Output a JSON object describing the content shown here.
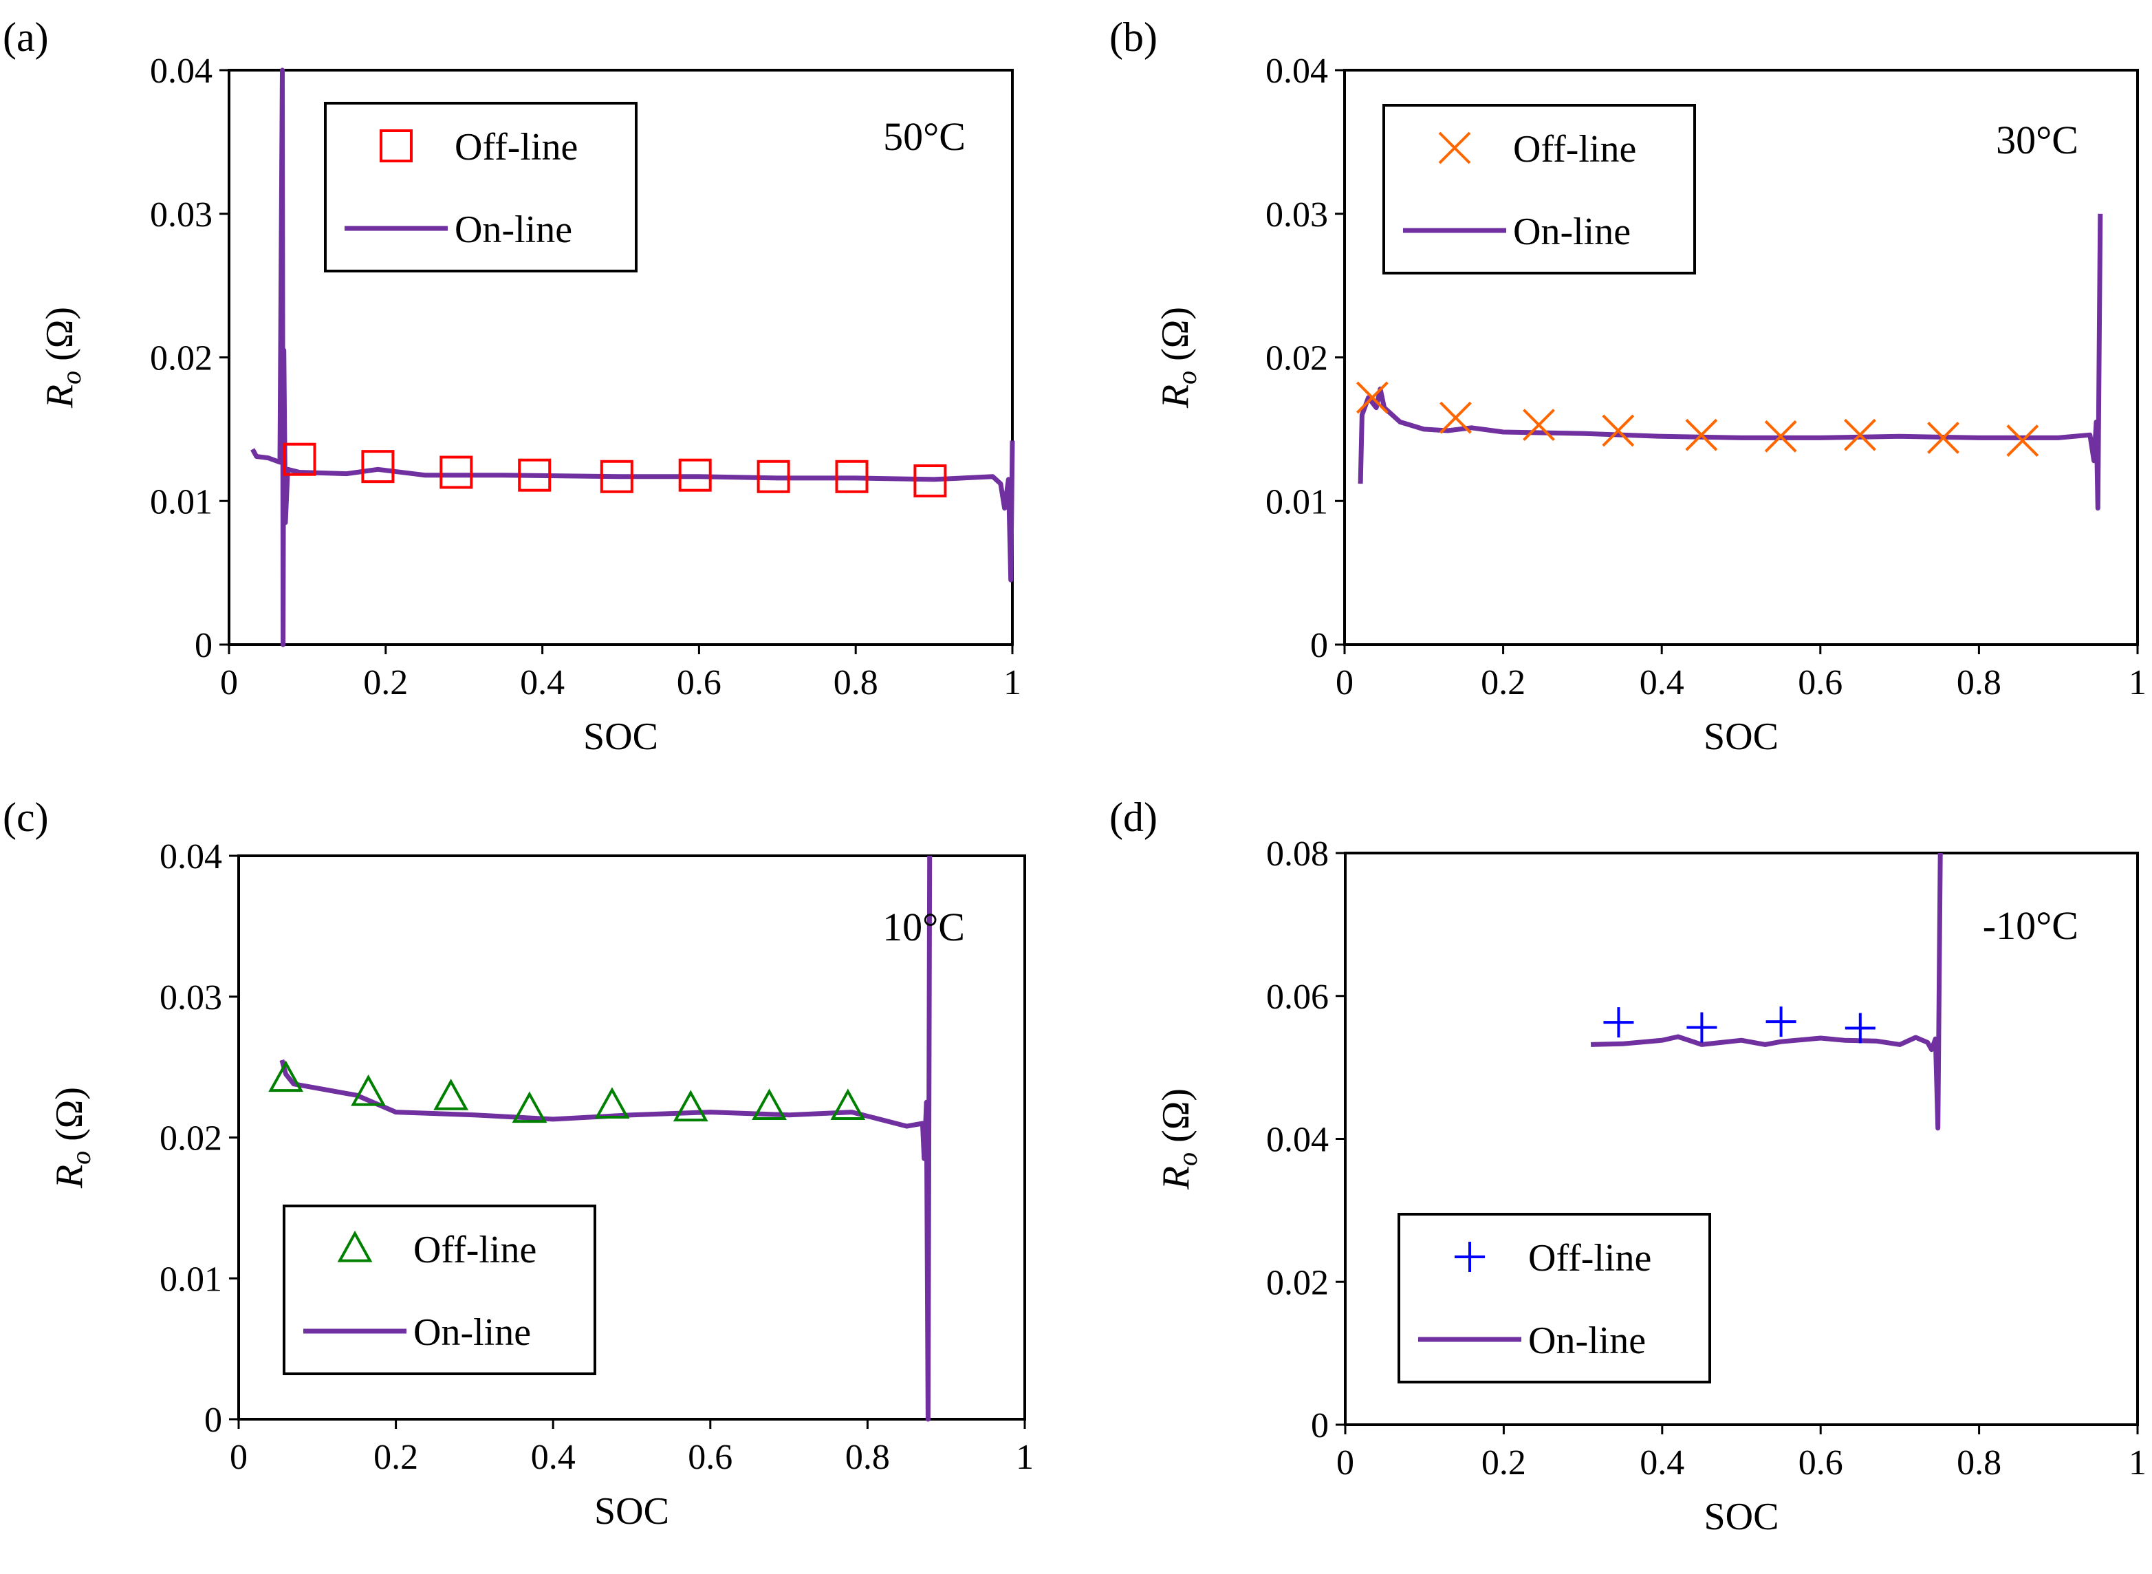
{
  "chart_data": [
    {
      "type": "line",
      "panel_label": "(a)",
      "temperature": "50°C",
      "xlabel": "SOC",
      "ylabel_main": "R",
      "ylabel_sub": "o",
      "ylabel_unit": " (Ω)",
      "xlim": [
        0,
        1
      ],
      "ylim": [
        0,
        0.04
      ],
      "xticks": [
        "0",
        "0.2",
        "0.4",
        "0.6",
        "0.8",
        "1"
      ],
      "yticks": [
        "0",
        "0.01",
        "0.02",
        "0.03",
        "0.04"
      ],
      "legend": {
        "position": "top-left",
        "offline_label": "Off-line",
        "online_label": "On-line"
      },
      "offline": {
        "marker": "square",
        "color": "#ff0000",
        "points": [
          [
            0.09,
            0.0129
          ],
          [
            0.19,
            0.0124
          ],
          [
            0.29,
            0.012
          ],
          [
            0.39,
            0.0118
          ],
          [
            0.495,
            0.0117
          ],
          [
            0.595,
            0.0118
          ],
          [
            0.695,
            0.0117
          ],
          [
            0.795,
            0.0117
          ],
          [
            0.895,
            0.0114
          ]
        ]
      },
      "online": {
        "color": "#7030a0",
        "points": [
          [
            0.03,
            0.0136
          ],
          [
            0.035,
            0.0131
          ],
          [
            0.05,
            0.013
          ],
          [
            0.065,
            0.0127
          ],
          [
            0.068,
            0.04
          ],
          [
            0.069,
            0.0
          ],
          [
            0.07,
            0.0205
          ],
          [
            0.072,
            0.0085
          ],
          [
            0.075,
            0.0122
          ],
          [
            0.09,
            0.012
          ],
          [
            0.15,
            0.0119
          ],
          [
            0.19,
            0.0122
          ],
          [
            0.25,
            0.0118
          ],
          [
            0.35,
            0.0118
          ],
          [
            0.5,
            0.0117
          ],
          [
            0.6,
            0.0117
          ],
          [
            0.7,
            0.0116
          ],
          [
            0.8,
            0.0116
          ],
          [
            0.9,
            0.0115
          ],
          [
            0.975,
            0.0117
          ],
          [
            0.985,
            0.0112
          ],
          [
            0.99,
            0.0095
          ],
          [
            0.995,
            0.0115
          ],
          [
            0.998,
            0.0045
          ],
          [
            1.0,
            0.0142
          ]
        ]
      }
    },
    {
      "type": "line",
      "panel_label": "(b)",
      "temperature": "30°C",
      "xlabel": "SOC",
      "ylabel_main": "R",
      "ylabel_sub": "o",
      "ylabel_unit": " (Ω)",
      "xlim": [
        0,
        1
      ],
      "ylim": [
        0,
        0.04
      ],
      "xticks": [
        "0",
        "0.2",
        "0.4",
        "0.6",
        "0.8",
        "1"
      ],
      "yticks": [
        "0",
        "0.01",
        "0.02",
        "0.03",
        "0.04"
      ],
      "legend": {
        "position": "top-left",
        "offline_label": "Off-line",
        "online_label": "On-line"
      },
      "offline": {
        "marker": "x",
        "color": "#ff6600",
        "points": [
          [
            0.035,
            0.0172
          ],
          [
            0.14,
            0.0158
          ],
          [
            0.245,
            0.0153
          ],
          [
            0.345,
            0.0149
          ],
          [
            0.45,
            0.0146
          ],
          [
            0.55,
            0.0145
          ],
          [
            0.65,
            0.0146
          ],
          [
            0.755,
            0.0144
          ],
          [
            0.855,
            0.0142
          ]
        ]
      },
      "online": {
        "color": "#7030a0",
        "points": [
          [
            0.02,
            0.0112
          ],
          [
            0.022,
            0.016
          ],
          [
            0.03,
            0.0172
          ],
          [
            0.04,
            0.0165
          ],
          [
            0.045,
            0.0178
          ],
          [
            0.05,
            0.0165
          ],
          [
            0.07,
            0.0155
          ],
          [
            0.1,
            0.015
          ],
          [
            0.13,
            0.0149
          ],
          [
            0.16,
            0.0151
          ],
          [
            0.2,
            0.0148
          ],
          [
            0.3,
            0.0147
          ],
          [
            0.4,
            0.0145
          ],
          [
            0.5,
            0.0144
          ],
          [
            0.6,
            0.0144
          ],
          [
            0.7,
            0.0145
          ],
          [
            0.8,
            0.0144
          ],
          [
            0.9,
            0.0144
          ],
          [
            0.94,
            0.0146
          ],
          [
            0.945,
            0.0128
          ],
          [
            0.948,
            0.0155
          ],
          [
            0.95,
            0.0095
          ],
          [
            0.953,
            0.03
          ]
        ]
      }
    },
    {
      "type": "line",
      "panel_label": "(c)",
      "temperature": "10°C",
      "xlabel": "SOC",
      "ylabel_main": "R",
      "ylabel_sub": "o",
      "ylabel_unit": " (Ω)",
      "xlim": [
        0,
        1
      ],
      "ylim": [
        0,
        0.04
      ],
      "xticks": [
        "0",
        "0.2",
        "0.4",
        "0.6",
        "0.8",
        "1"
      ],
      "yticks": [
        "0",
        "0.01",
        "0.02",
        "0.03",
        "0.04"
      ],
      "legend": {
        "position": "bottom-left",
        "offline_label": "Off-line",
        "online_label": "On-line"
      },
      "offline": {
        "marker": "triangle",
        "color": "#008000",
        "points": [
          [
            0.06,
            0.0242
          ],
          [
            0.165,
            0.0232
          ],
          [
            0.27,
            0.0229
          ],
          [
            0.37,
            0.022
          ],
          [
            0.475,
            0.0223
          ],
          [
            0.575,
            0.0221
          ],
          [
            0.675,
            0.0222
          ],
          [
            0.775,
            0.0222
          ]
        ]
      },
      "online": {
        "color": "#7030a0",
        "points": [
          [
            0.055,
            0.0255
          ],
          [
            0.06,
            0.0245
          ],
          [
            0.07,
            0.0238
          ],
          [
            0.1,
            0.0235
          ],
          [
            0.15,
            0.023
          ],
          [
            0.2,
            0.0218
          ],
          [
            0.3,
            0.0216
          ],
          [
            0.4,
            0.0213
          ],
          [
            0.5,
            0.0216
          ],
          [
            0.6,
            0.0218
          ],
          [
            0.7,
            0.0216
          ],
          [
            0.78,
            0.0218
          ],
          [
            0.85,
            0.0208
          ],
          [
            0.87,
            0.021
          ],
          [
            0.872,
            0.0185
          ],
          [
            0.875,
            0.0225
          ],
          [
            0.877,
            0.0
          ],
          [
            0.879,
            0.04
          ]
        ]
      }
    },
    {
      "type": "line",
      "panel_label": "(d)",
      "temperature": "-10°C",
      "xlabel": "SOC",
      "ylabel_main": "R",
      "ylabel_sub": "o",
      "ylabel_unit": " (Ω)",
      "xlim": [
        0,
        1
      ],
      "ylim": [
        0,
        0.08
      ],
      "xticks": [
        "0",
        "0.2",
        "0.4",
        "0.6",
        "0.8",
        "1"
      ],
      "yticks": [
        "0",
        "0.02",
        "0.04",
        "0.06",
        "0.08"
      ],
      "legend": {
        "position": "bottom-left",
        "offline_label": "Off-line",
        "online_label": "On-line"
      },
      "offline": {
        "marker": "plus",
        "color": "#0000ff",
        "points": [
          [
            0.345,
            0.0563
          ],
          [
            0.45,
            0.0556
          ],
          [
            0.55,
            0.0564
          ],
          [
            0.65,
            0.0555
          ]
        ]
      },
      "online": {
        "color": "#7030a0",
        "points": [
          [
            0.31,
            0.0532
          ],
          [
            0.35,
            0.0533
          ],
          [
            0.4,
            0.0538
          ],
          [
            0.42,
            0.0543
          ],
          [
            0.45,
            0.0532
          ],
          [
            0.5,
            0.0538
          ],
          [
            0.53,
            0.0532
          ],
          [
            0.55,
            0.0536
          ],
          [
            0.6,
            0.0541
          ],
          [
            0.63,
            0.0538
          ],
          [
            0.67,
            0.0537
          ],
          [
            0.7,
            0.0532
          ],
          [
            0.72,
            0.0542
          ],
          [
            0.735,
            0.0535
          ],
          [
            0.74,
            0.0525
          ],
          [
            0.745,
            0.054
          ],
          [
            0.748,
            0.0415
          ],
          [
            0.751,
            0.08
          ]
        ]
      }
    }
  ]
}
